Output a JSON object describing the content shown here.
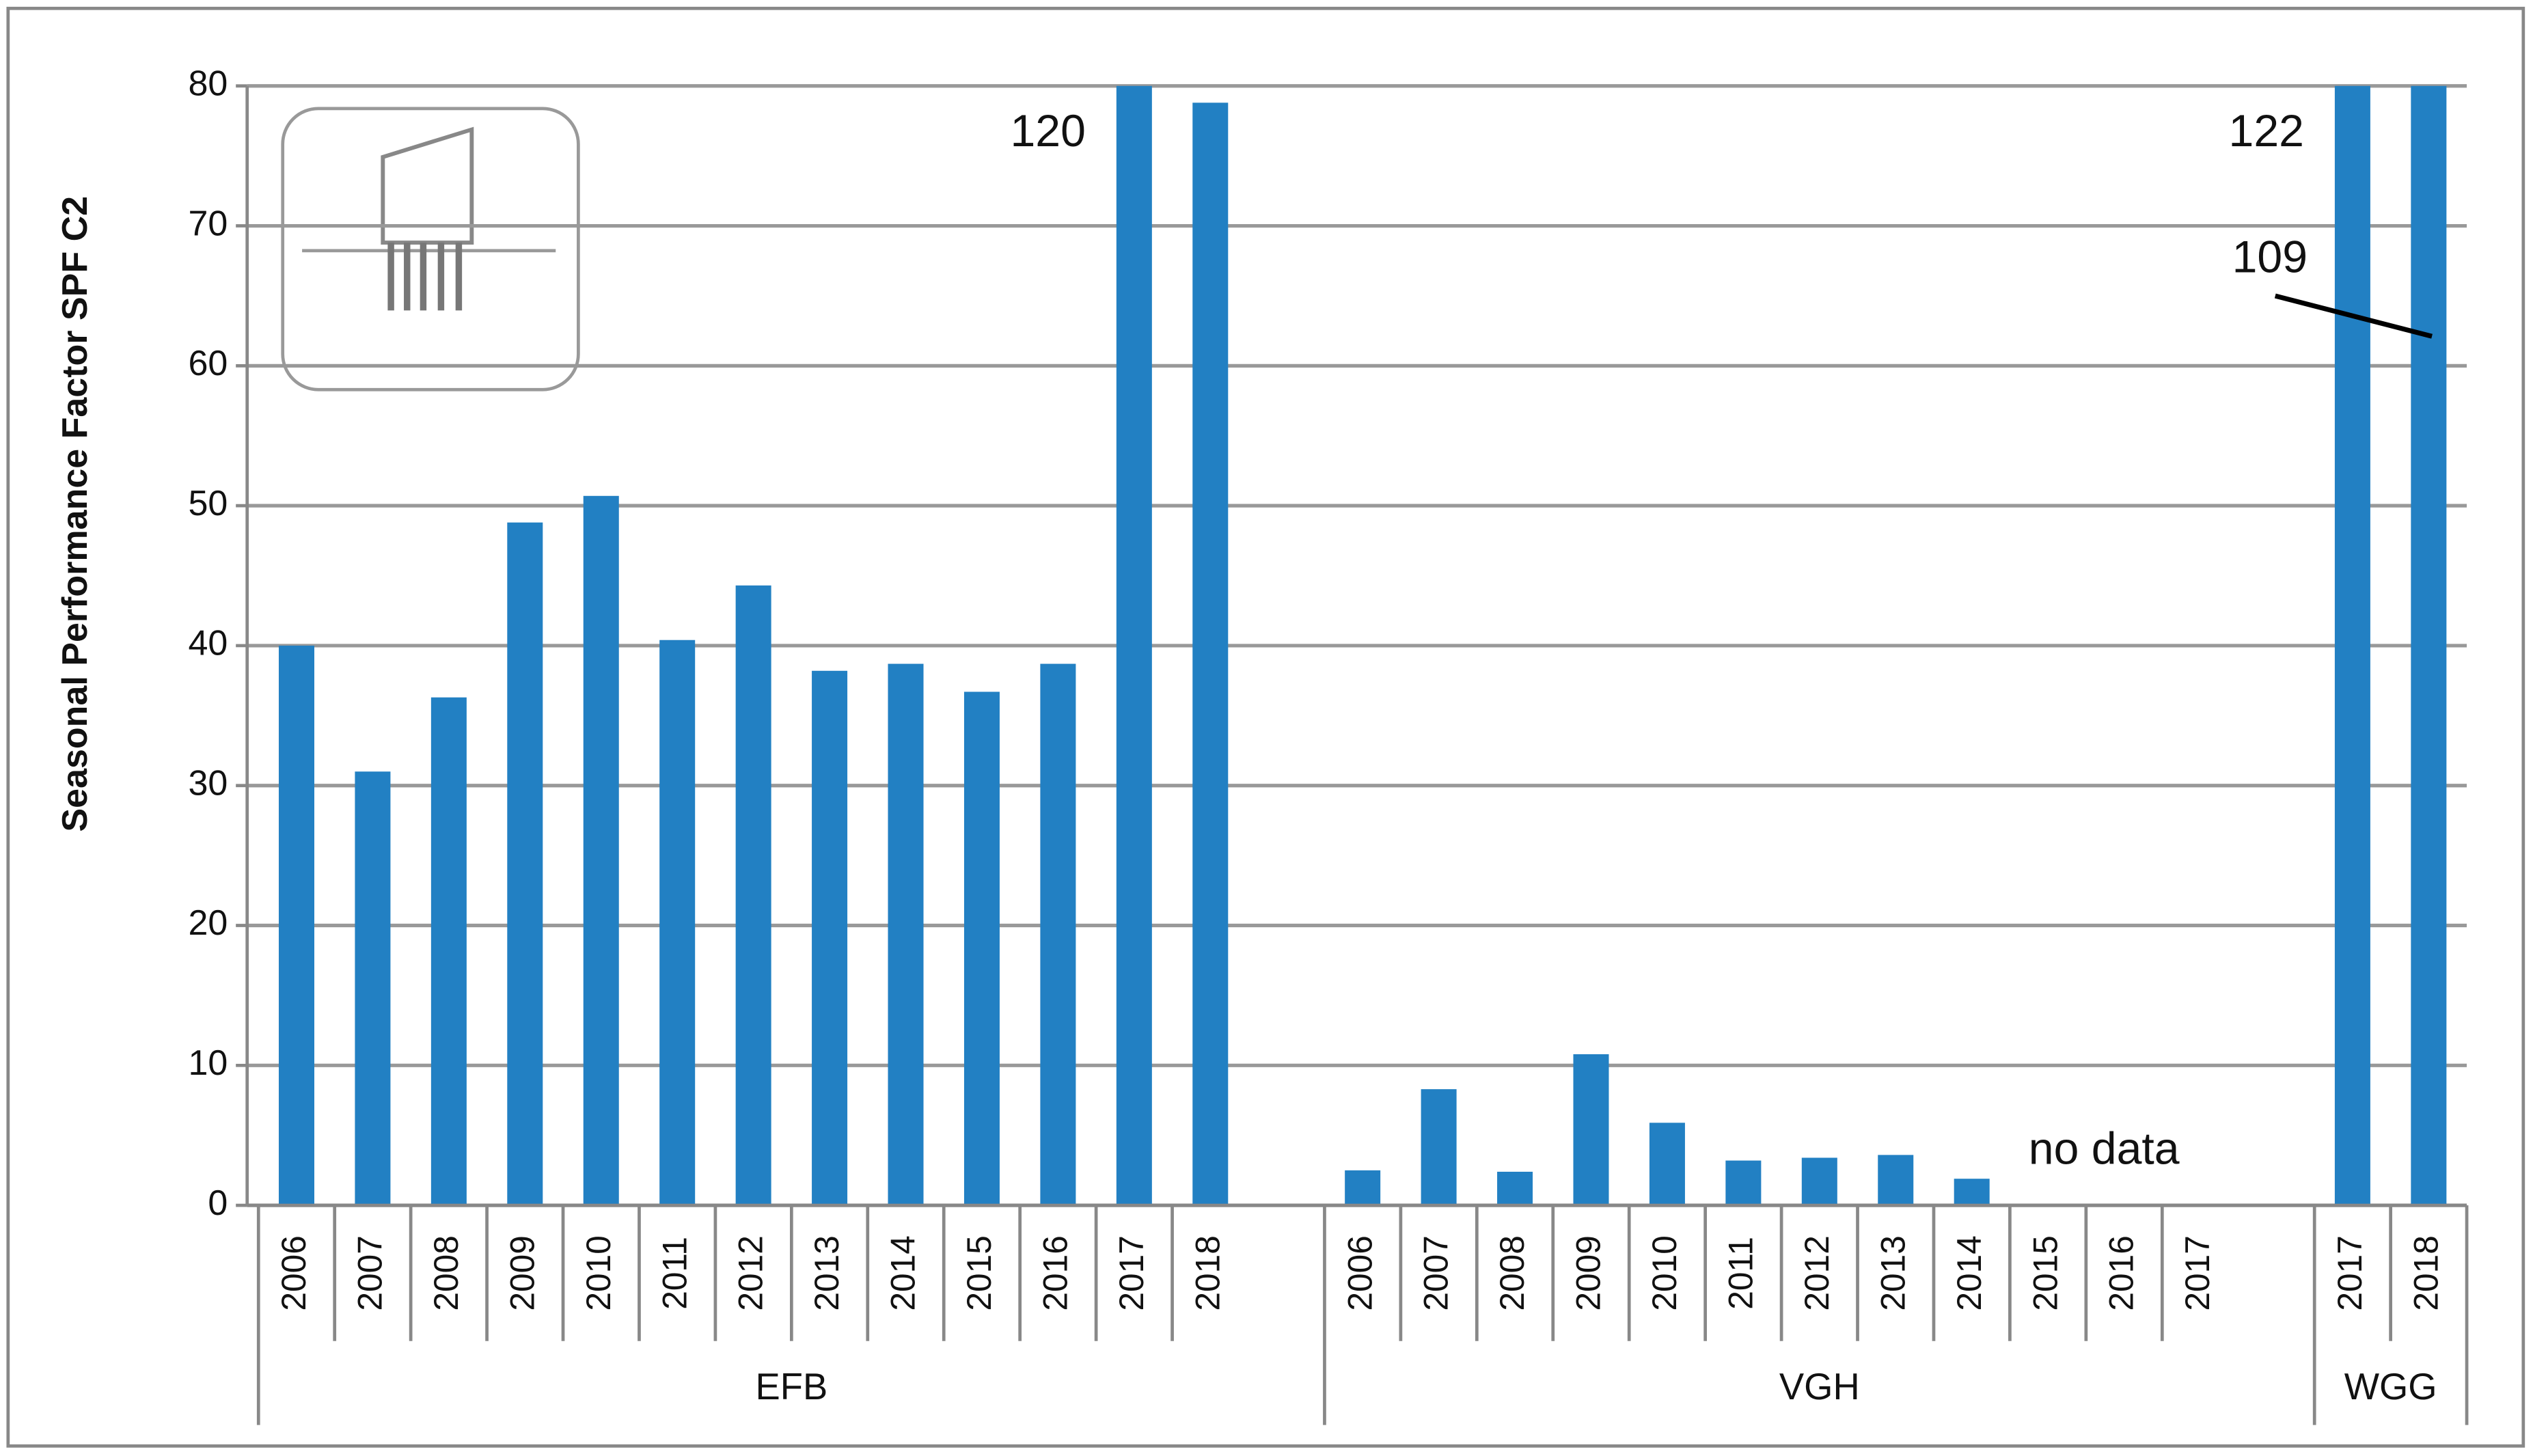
{
  "chart_data": {
    "type": "bar",
    "y_label": "Seasonal Performance Factor SPF C2",
    "color": "#2280c3",
    "ylim": [
      0,
      80
    ],
    "yticks": [
      0,
      10,
      20,
      30,
      40,
      50,
      60,
      70,
      80
    ],
    "grid": true,
    "groups": [
      {
        "label": "EFB",
        "categories": [
          "2006",
          "2007",
          "2008",
          "2009",
          "2010",
          "2011",
          "2012",
          "2013",
          "2014",
          "2015",
          "2016",
          "2017",
          "2018"
        ],
        "values": [
          40,
          31,
          36.3,
          48.8,
          50.7,
          40.4,
          44.3,
          38.2,
          38.7,
          36.7,
          38.7,
          120,
          78.8
        ],
        "value_labels": [
          null,
          null,
          null,
          null,
          null,
          null,
          null,
          null,
          null,
          null,
          null,
          "120",
          null
        ]
      },
      {
        "label": "VGH",
        "categories": [
          "2006",
          "2007",
          "2008",
          "2009",
          "2010",
          "2011",
          "2012",
          "2013",
          "2014",
          "2015",
          "2016",
          "2017"
        ],
        "values": [
          2.5,
          8.3,
          2.4,
          10.8,
          5.9,
          3.2,
          3.4,
          3.6,
          1.9,
          null,
          null,
          null
        ],
        "annotation": "no data"
      },
      {
        "label": "WGG",
        "categories": [
          "2017",
          "2018"
        ],
        "values": [
          122,
          109
        ],
        "value_labels": [
          "122",
          "109"
        ]
      }
    ]
  }
}
